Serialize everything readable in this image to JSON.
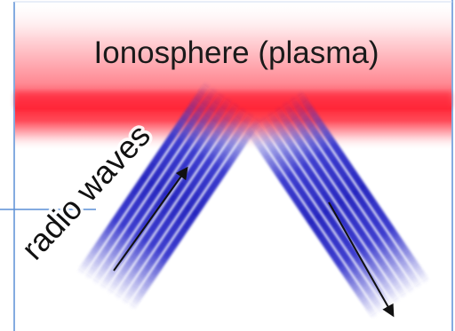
{
  "diagram": {
    "title": "Ionosphere (plasma)",
    "wave_label": "radio waves",
    "colors": {
      "plasma": "#ff2a3a",
      "wave": "#3030c8",
      "frame": "#5b8fd6",
      "arrow": "#111111"
    }
  }
}
